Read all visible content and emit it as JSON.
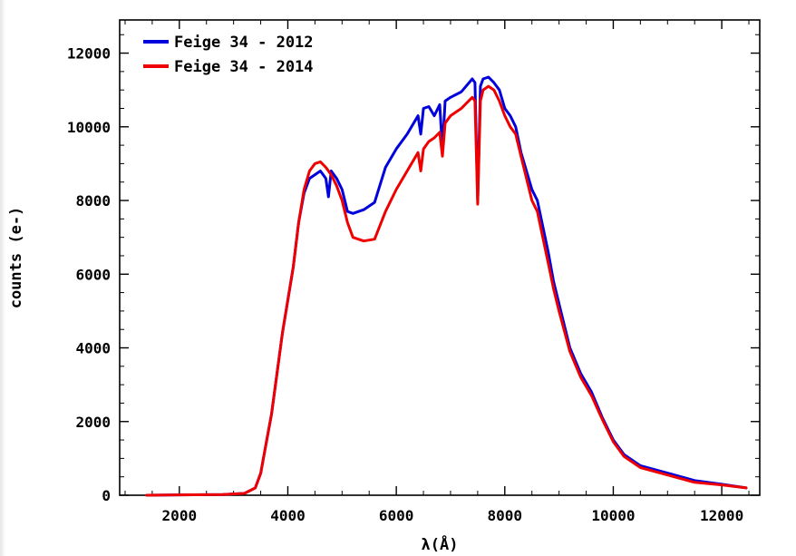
{
  "chart_data": {
    "type": "line",
    "title": "",
    "xlabel": "λ(Å)",
    "ylabel": "counts (e-)",
    "xlim": [
      900,
      12700
    ],
    "ylim": [
      0,
      12900
    ],
    "xticks": [
      2000,
      4000,
      6000,
      8000,
      10000,
      12000
    ],
    "yticks": [
      0,
      2000,
      4000,
      6000,
      8000,
      10000,
      12000
    ],
    "xtick_labels": [
      "2000",
      "4000",
      "6000",
      "8000",
      "10000",
      "12000"
    ],
    "ytick_labels": [
      "0",
      "2000",
      "4000",
      "6000",
      "8000",
      "10000",
      "12000"
    ],
    "legend_position": "top-left",
    "series": [
      {
        "name": "Feige 34 - 2012",
        "color": "#0000dd",
        "x": [
          1400,
          2000,
          2800,
          3200,
          3400,
          3500,
          3600,
          3700,
          3800,
          3900,
          4000,
          4100,
          4200,
          4300,
          4400,
          4500,
          4600,
          4700,
          4750,
          4800,
          4900,
          5000,
          5100,
          5200,
          5400,
          5600,
          5800,
          6000,
          6200,
          6400,
          6450,
          6500,
          6600,
          6700,
          6800,
          6850,
          6900,
          7000,
          7200,
          7400,
          7450,
          7500,
          7550,
          7600,
          7700,
          7800,
          7900,
          8000,
          8100,
          8200,
          8300,
          8400,
          8500,
          8600,
          8700,
          8800,
          8900,
          9000,
          9200,
          9400,
          9600,
          9800,
          10000,
          10200,
          10500,
          11000,
          11500,
          12000,
          12450
        ],
        "y": [
          0,
          10,
          20,
          50,
          200,
          600,
          1400,
          2200,
          3300,
          4400,
          5300,
          6200,
          7400,
          8200,
          8600,
          8700,
          8800,
          8600,
          8100,
          8800,
          8600,
          8300,
          7700,
          7650,
          7750,
          7950,
          8900,
          9400,
          9800,
          10300,
          9800,
          10500,
          10550,
          10300,
          10600,
          9400,
          10700,
          10800,
          10950,
          11300,
          11200,
          8000,
          11100,
          11300,
          11350,
          11200,
          11000,
          10500,
          10300,
          10000,
          9300,
          8800,
          8300,
          8000,
          7300,
          6600,
          5800,
          5200,
          4000,
          3300,
          2800,
          2100,
          1500,
          1100,
          800,
          600,
          400,
          300,
          200
        ]
      },
      {
        "name": "Feige 34 - 2014",
        "color": "#ee0000",
        "x": [
          1400,
          2000,
          2800,
          3200,
          3400,
          3500,
          3600,
          3700,
          3800,
          3900,
          4000,
          4100,
          4200,
          4300,
          4400,
          4500,
          4600,
          4700,
          4800,
          4900,
          5000,
          5100,
          5200,
          5400,
          5600,
          5800,
          6000,
          6200,
          6400,
          6450,
          6500,
          6600,
          6700,
          6800,
          6850,
          6900,
          7000,
          7200,
          7400,
          7450,
          7500,
          7550,
          7600,
          7700,
          7800,
          7900,
          8000,
          8100,
          8200,
          8300,
          8400,
          8500,
          8600,
          8700,
          8800,
          8900,
          9000,
          9200,
          9400,
          9600,
          9800,
          10000,
          10200,
          10500,
          11000,
          11500,
          12000,
          12450
        ],
        "y": [
          0,
          10,
          20,
          50,
          200,
          600,
          1400,
          2200,
          3300,
          4400,
          5300,
          6200,
          7400,
          8300,
          8800,
          9000,
          9050,
          8900,
          8700,
          8400,
          8000,
          7400,
          7000,
          6900,
          6950,
          7700,
          8300,
          8800,
          9300,
          8800,
          9400,
          9600,
          9700,
          9850,
          9200,
          10100,
          10300,
          10500,
          10800,
          10700,
          7900,
          10700,
          11000,
          11100,
          11000,
          10700,
          10300,
          10000,
          9800,
          9200,
          8600,
          8000,
          7700,
          7000,
          6300,
          5600,
          5000,
          3900,
          3200,
          2700,
          2050,
          1450,
          1050,
          750,
          550,
          350,
          280,
          200
        ]
      }
    ]
  }
}
